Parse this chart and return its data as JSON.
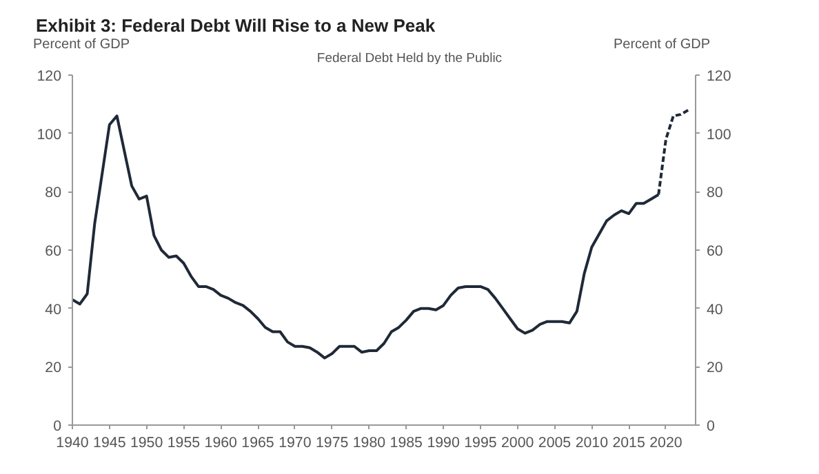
{
  "chart_data": {
    "type": "line",
    "title": "Exhibit 3: Federal Debt Will Rise to a New Peak",
    "subtitle": "Federal Debt Held by the Public",
    "ylabel": "Percent of GDP",
    "y2label": "Percent of GDP",
    "xlim": [
      1940,
      2024
    ],
    "xticks": [
      1940,
      1945,
      1950,
      1955,
      1960,
      1965,
      1970,
      1975,
      1980,
      1985,
      1990,
      1995,
      2000,
      2005,
      2010,
      2015,
      2020
    ],
    "ylim": [
      0,
      120
    ],
    "yticks": [
      0,
      20,
      40,
      60,
      80,
      100,
      120
    ],
    "y2lim": [
      0,
      120
    ],
    "y2ticks": [
      0,
      20,
      40,
      60,
      80,
      100,
      120
    ],
    "grid": false,
    "marker": "none",
    "series": [
      {
        "color": "#1f2937",
        "line_style": "solid",
        "x": [
          1940,
          1941,
          1942,
          1943,
          1944,
          1945,
          1946,
          1947,
          1948,
          1949,
          1950,
          1951,
          1952,
          1953,
          1954,
          1955,
          1956,
          1957,
          1958,
          1959,
          1960,
          1961,
          1962,
          1963,
          1964,
          1965,
          1966,
          1967,
          1968,
          1969,
          1970,
          1971,
          1972,
          1973,
          1974,
          1975,
          1976,
          1977,
          1978,
          1979,
          1980,
          1981,
          1982,
          1983,
          1984,
          1985,
          1986,
          1987,
          1988,
          1989,
          1990,
          1991,
          1992,
          1993,
          1994,
          1995,
          1996,
          1997,
          1998,
          1999,
          2000,
          2001,
          2002,
          2003,
          2004,
          2005,
          2006,
          2007,
          2008,
          2009,
          2010,
          2011,
          2012,
          2013,
          2014,
          2015,
          2016,
          2017,
          2018,
          2019
        ],
        "values": [
          43,
          41.5,
          45,
          69,
          86,
          103,
          106,
          94,
          82,
          77.5,
          78.5,
          65,
          60,
          57.5,
          58,
          55.5,
          51,
          47.5,
          47.5,
          46.5,
          44.5,
          43.5,
          42,
          41,
          39,
          36.5,
          33.5,
          32,
          32,
          28.5,
          27,
          27,
          26.5,
          25,
          23,
          24.5,
          27,
          27,
          27,
          25,
          25.5,
          25.5,
          28,
          32,
          33.5,
          36,
          39,
          40,
          40,
          39.5,
          41,
          44.5,
          47,
          47.5,
          47.5,
          47.5,
          46.5,
          43.5,
          40,
          36.5,
          33,
          31.5,
          32.5,
          34.5,
          35.5,
          35.5,
          35.5,
          35,
          39,
          52,
          61,
          65.5,
          70,
          72,
          73.5,
          72.5,
          76,
          76,
          77.5,
          79
        ]
      },
      {
        "color": "#1f2937",
        "line_style": "dashed",
        "x": [
          2019,
          2020,
          2021,
          2022,
          2023
        ],
        "values": [
          79,
          98,
          106,
          106.5,
          108
        ]
      }
    ]
  }
}
